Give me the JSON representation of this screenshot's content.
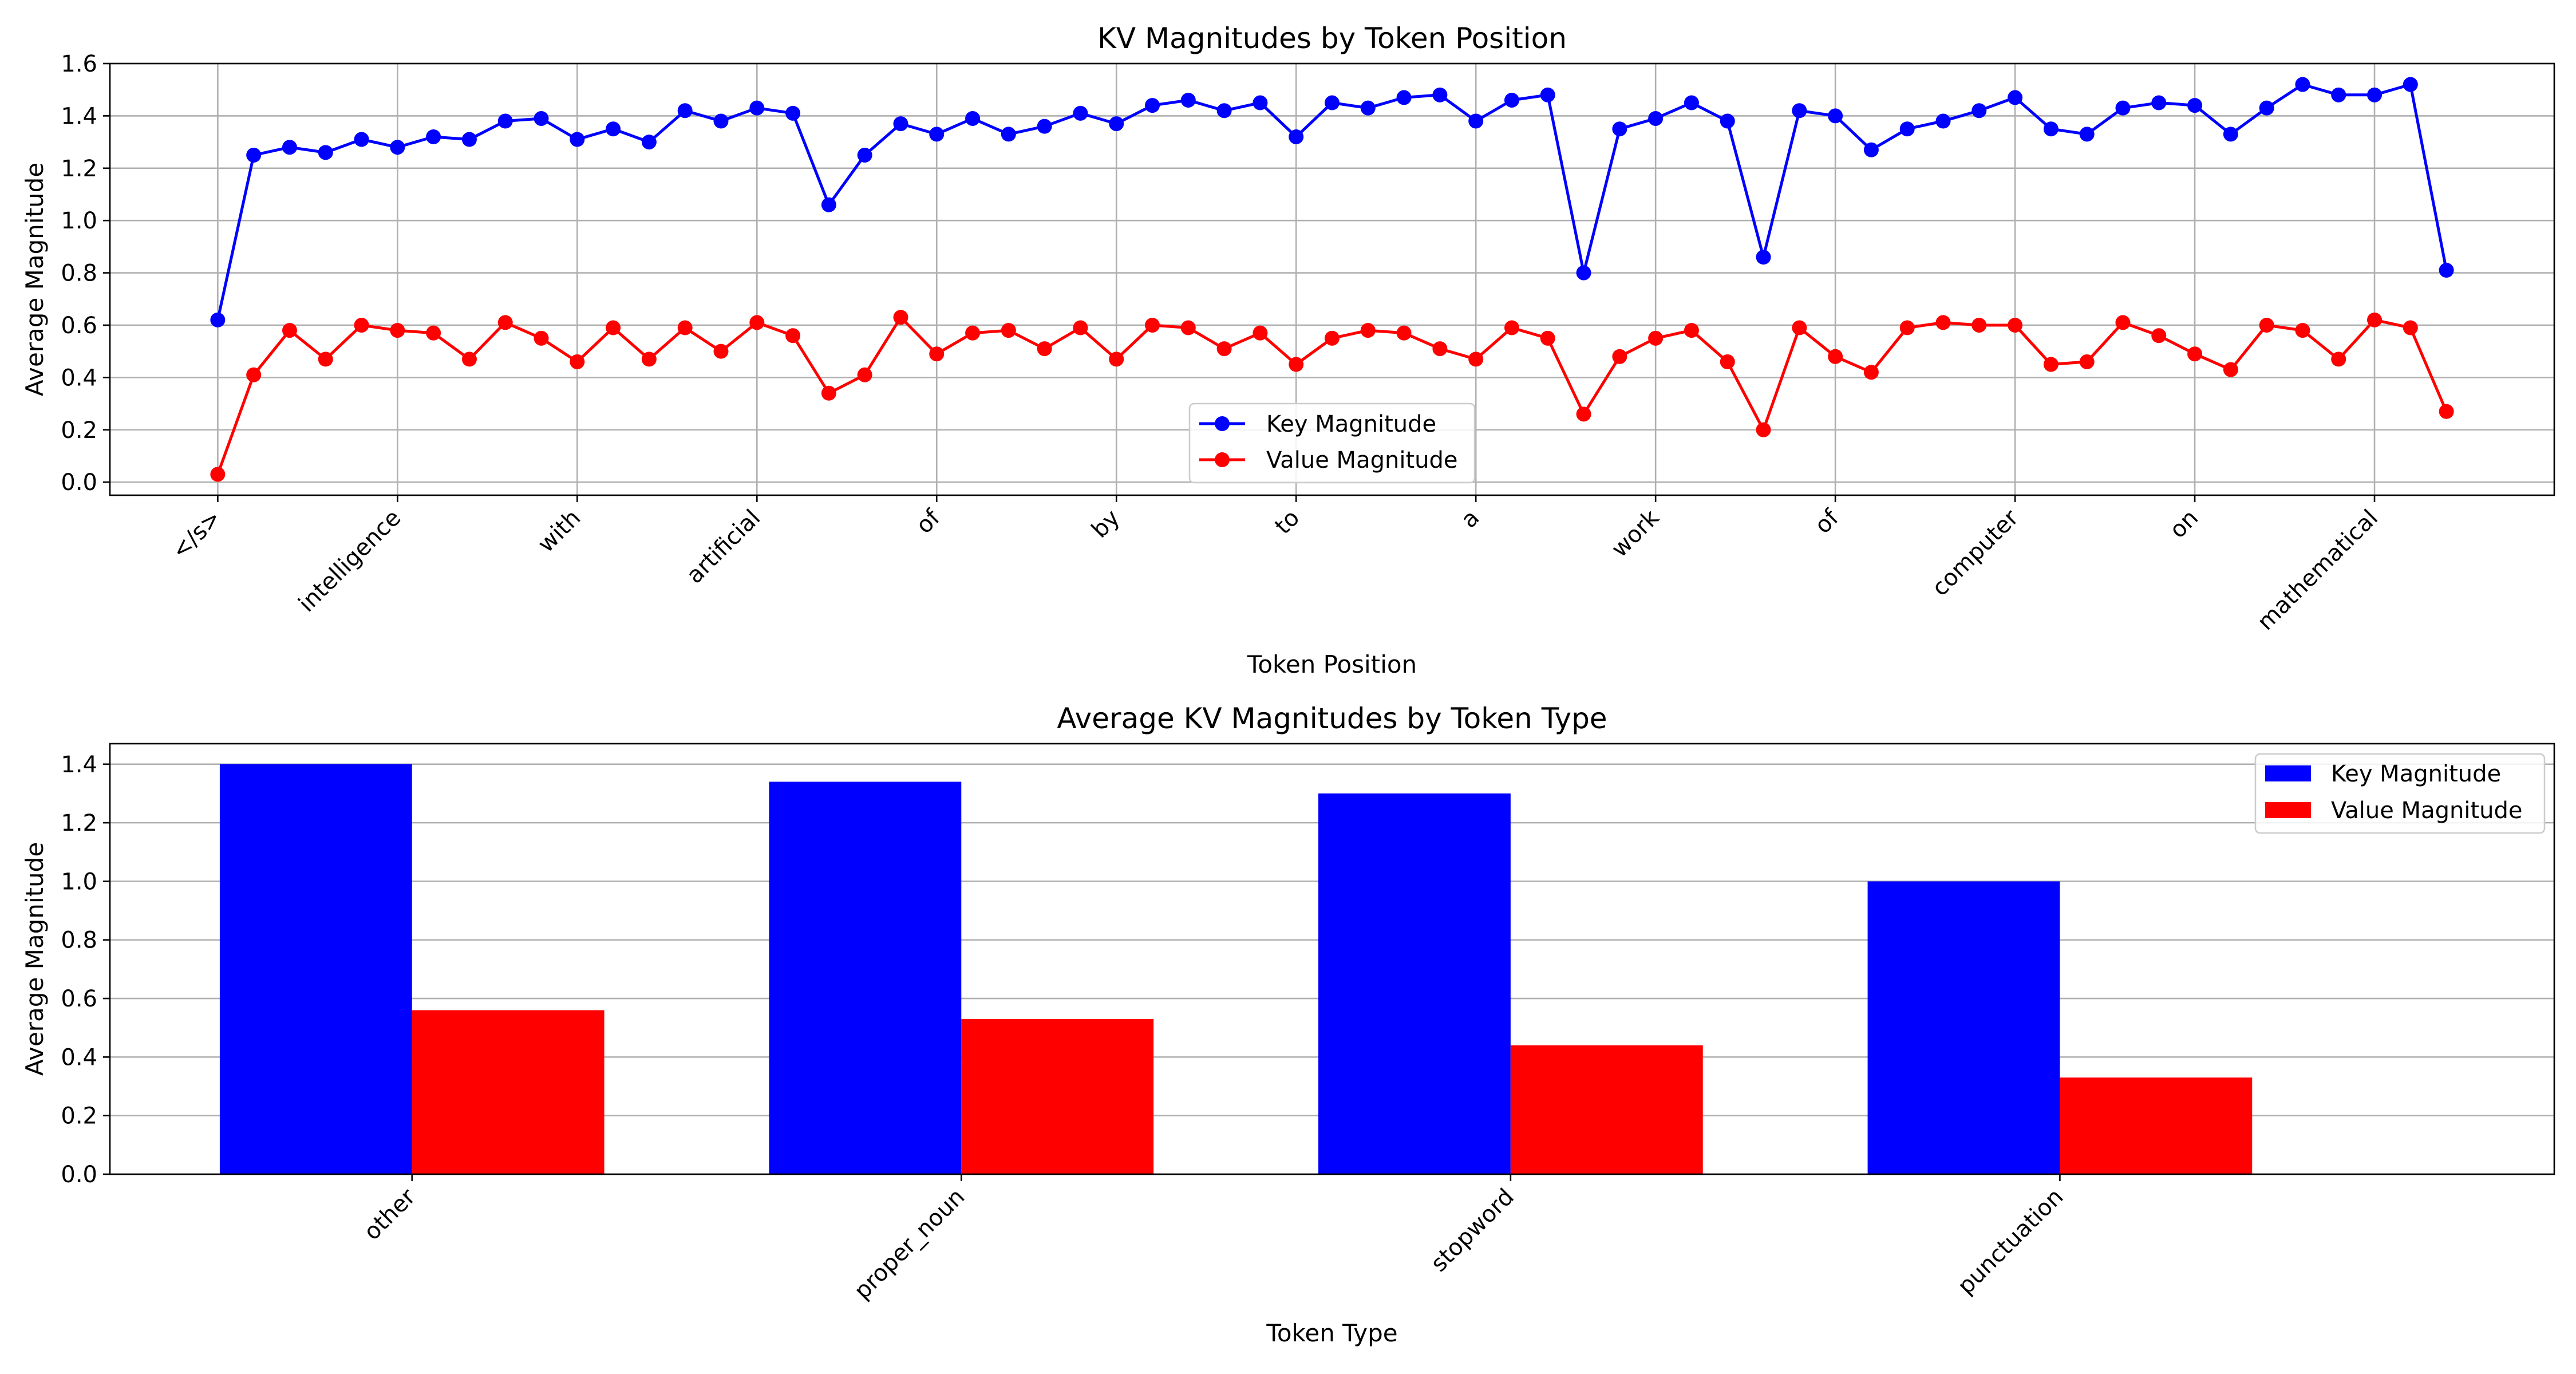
{
  "chart_data": [
    {
      "type": "line",
      "title": "KV Magnitudes by Token Position",
      "xlabel": "Token Position",
      "ylabel": "Average Magnitude",
      "ylim": [
        -0.05,
        1.6
      ],
      "yticks": [
        0.0,
        0.2,
        0.4,
        0.6,
        0.8,
        1.0,
        1.2,
        1.4,
        1.6
      ],
      "ytick_labels": [
        "0.0",
        "0.2",
        "0.4",
        "0.6",
        "0.8",
        "1.0",
        "1.2",
        "1.4",
        "1.6"
      ],
      "xlim": [
        -3,
        65
      ],
      "xticks": [
        0,
        5,
        10,
        15,
        20,
        25,
        30,
        35,
        40,
        45,
        50,
        55,
        60
      ],
      "xtick_labels": [
        "</s>",
        "intelligence",
        "with",
        "artificial",
        "of",
        "by",
        "to",
        "a",
        "work",
        "of",
        "computer",
        "on",
        "mathematical"
      ],
      "grid": true,
      "legend_position": "lower-center",
      "colors": {
        "key": "#0000ff",
        "value": "#ff0000"
      },
      "series": [
        {
          "name": "Key Magnitude",
          "values": [
            0.62,
            1.25,
            1.28,
            1.26,
            1.31,
            1.28,
            1.32,
            1.31,
            1.38,
            1.39,
            1.31,
            1.35,
            1.3,
            1.42,
            1.38,
            1.43,
            1.41,
            1.06,
            1.25,
            1.37,
            1.33,
            1.39,
            1.33,
            1.36,
            1.41,
            1.37,
            1.44,
            1.46,
            1.42,
            1.45,
            1.32,
            1.45,
            1.43,
            1.47,
            1.48,
            1.38,
            1.46,
            1.48,
            0.8,
            1.35,
            1.39,
            1.45,
            1.38,
            0.86,
            1.42,
            1.4,
            1.27,
            1.35,
            1.38,
            1.42,
            1.47,
            1.35,
            1.33,
            1.43,
            1.45,
            1.44,
            1.33,
            1.43,
            1.52,
            1.48,
            1.48,
            1.52,
            0.81
          ]
        },
        {
          "name": "Value Magnitude",
          "values": [
            0.03,
            0.41,
            0.58,
            0.47,
            0.6,
            0.58,
            0.57,
            0.47,
            0.61,
            0.55,
            0.46,
            0.59,
            0.47,
            0.59,
            0.5,
            0.61,
            0.56,
            0.34,
            0.41,
            0.63,
            0.49,
            0.57,
            0.58,
            0.51,
            0.59,
            0.47,
            0.6,
            0.59,
            0.51,
            0.57,
            0.45,
            0.55,
            0.58,
            0.57,
            0.51,
            0.47,
            0.59,
            0.55,
            0.26,
            0.48,
            0.55,
            0.58,
            0.46,
            0.2,
            0.59,
            0.48,
            0.42,
            0.59,
            0.61,
            0.6,
            0.6,
            0.45,
            0.46,
            0.61,
            0.56,
            0.49,
            0.43,
            0.6,
            0.58,
            0.47,
            0.62,
            0.59,
            0.27
          ]
        }
      ]
    },
    {
      "type": "bar",
      "title": "Average KV Magnitudes by Token Type",
      "xlabel": "Token Type",
      "ylabel": "Average Magnitude",
      "ylim": [
        0.0,
        1.47
      ],
      "yticks": [
        0.0,
        0.2,
        0.4,
        0.6,
        0.8,
        1.0,
        1.2,
        1.4
      ],
      "ytick_labels": [
        "0.0",
        "0.2",
        "0.4",
        "0.6",
        "0.8",
        "1.0",
        "1.2",
        "1.4"
      ],
      "categories": [
        "other",
        "proper_noun",
        "stopword",
        "punctuation"
      ],
      "grid": true,
      "legend_position": "top-right",
      "colors": {
        "key": "#0000ff",
        "value": "#ff0000"
      },
      "series": [
        {
          "name": "Key Magnitude",
          "values": [
            1.4,
            1.34,
            1.3,
            1.0
          ]
        },
        {
          "name": "Value Magnitude",
          "values": [
            0.56,
            0.53,
            0.44,
            0.33
          ]
        }
      ]
    }
  ]
}
